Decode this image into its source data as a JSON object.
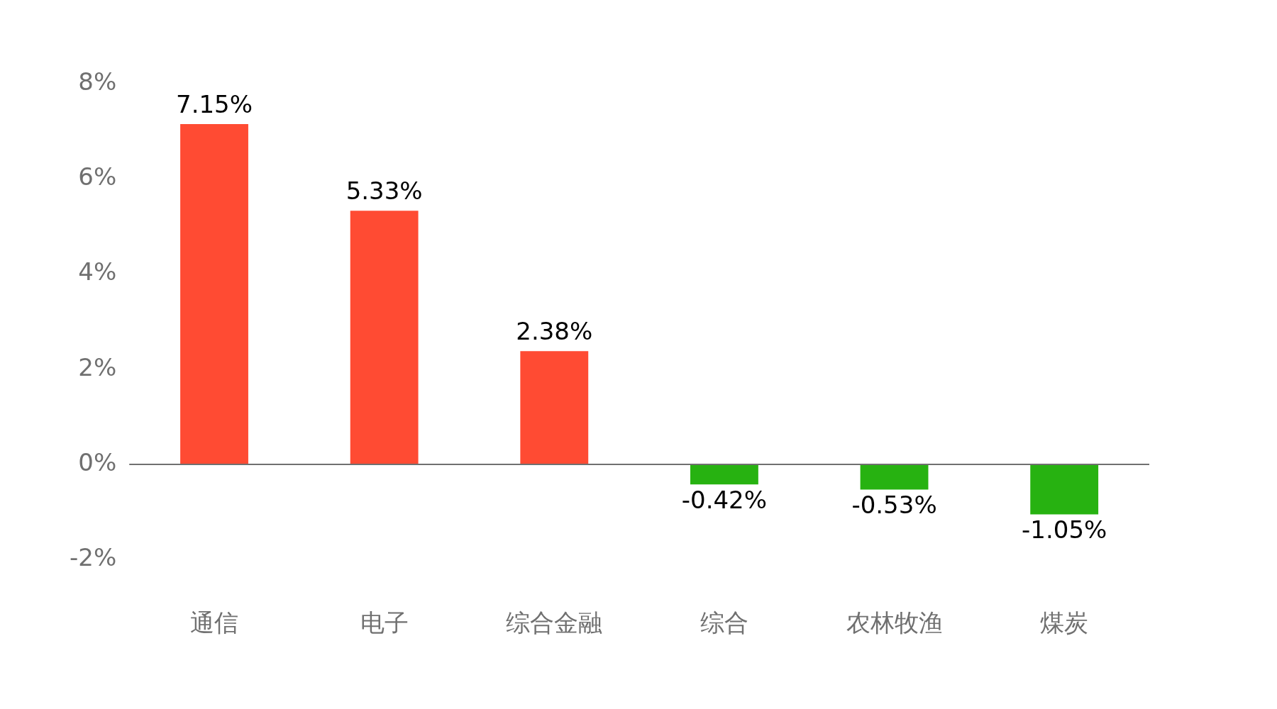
{
  "chart_data": {
    "type": "bar",
    "categories": [
      "通信",
      "电子",
      "综合金融",
      "综合",
      "农林牧渔",
      "煤炭"
    ],
    "values": [
      7.15,
      5.33,
      2.38,
      -0.42,
      -0.53,
      -1.05
    ],
    "colors": [
      "#ff4b33",
      "#ff4b33",
      "#ff4b33",
      "#27b211",
      "#27b211",
      "#27b211"
    ],
    "value_labels": [
      "7.15%",
      "5.33%",
      "2.38%",
      "-0.42%",
      "-0.53%",
      "-1.05%"
    ],
    "ylim": [
      -2,
      8
    ],
    "yticks": [
      {
        "value": -2,
        "label": "-2%"
      },
      {
        "value": 0,
        "label": "0%"
      },
      {
        "value": 2,
        "label": "2%"
      },
      {
        "value": 4,
        "label": "4%"
      },
      {
        "value": 6,
        "label": "6%"
      },
      {
        "value": 8,
        "label": "8%"
      }
    ],
    "ref_lines": [
      {
        "axis": "y",
        "value": 0,
        "color": "#707070"
      }
    ],
    "grid": false,
    "legend": false
  }
}
